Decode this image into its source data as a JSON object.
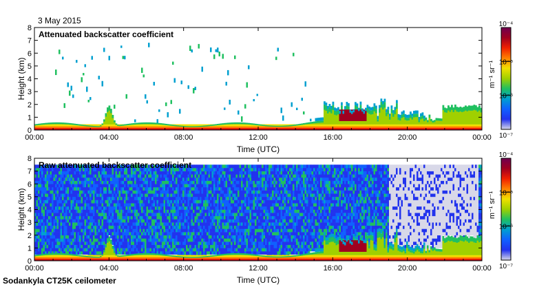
{
  "header": {
    "date": "3 May 2015"
  },
  "footer": {
    "instrument": "Sodankyla CT25K ceilometer"
  },
  "colors": {
    "scale": [
      "#d8d8e8",
      "#2233ee",
      "#1060ff",
      "#00a0d0",
      "#20c060",
      "#a0d000",
      "#f0e000",
      "#ff8000",
      "#f02000",
      "#a00020",
      "#700050"
    ]
  },
  "chart_data": [
    {
      "type": "heatmap",
      "title": "Attenuated backscatter coefficient",
      "xlabel": "Time (UTC)",
      "ylabel": "Height (km)",
      "x_ticks": [
        "00:00",
        "04:00",
        "08:00",
        "12:00",
        "16:00",
        "20:00",
        "00:00"
      ],
      "y_ticks": [
        "0",
        "1",
        "2",
        "3",
        "4",
        "5",
        "6",
        "7",
        "8"
      ],
      "xlim": [
        0,
        24
      ],
      "ylim": [
        0,
        8
      ],
      "colorbar": {
        "scale": "log",
        "range": [
          1e-07,
          0.0001
        ],
        "unit": "m⁻¹ sr⁻¹",
        "ticks": [
          "10⁻⁷",
          "10⁻⁶",
          "10⁻⁵",
          "10⁻⁴"
        ]
      },
      "noise_level": 0.0,
      "grid": false
    },
    {
      "type": "heatmap",
      "title": "Raw attenuated backscatter coefficient",
      "xlabel": "Time (UTC)",
      "ylabel": "Height (km)",
      "x_ticks": [
        "00:00",
        "04:00",
        "08:00",
        "12:00",
        "16:00",
        "20:00",
        "00:00"
      ],
      "y_ticks": [
        "0",
        "1",
        "2",
        "3",
        "4",
        "5",
        "6",
        "7",
        "8"
      ],
      "xlim": [
        0,
        24
      ],
      "ylim": [
        0,
        8
      ],
      "colorbar": {
        "scale": "log",
        "range": [
          1e-07,
          0.0001
        ],
        "unit": "m⁻¹ sr⁻¹",
        "ticks": [
          "10⁻⁷",
          "10⁻⁶",
          "10⁻⁵",
          "10⁻⁴"
        ]
      },
      "noise_level": 1.0,
      "grid": false
    }
  ]
}
